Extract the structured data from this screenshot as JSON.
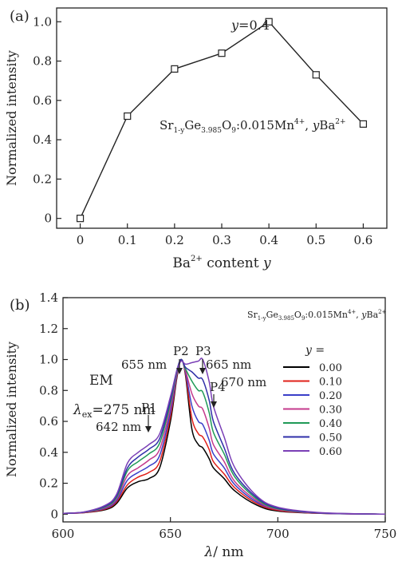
{
  "chart_data": [
    {
      "panel_label": "(a)",
      "type": "line",
      "marker": "open-square",
      "title": "",
      "xlabel": {
        "base": "Ba",
        "sup": "2+",
        "rest": "content",
        "italic": "y"
      },
      "ylabel": "Normalized intensity",
      "xlim": [
        -0.05,
        0.65
      ],
      "ylim": [
        -0.05,
        1.07
      ],
      "xticks": [
        "0",
        "0.1",
        "0.2",
        "0.3",
        "0.4",
        "0.5",
        "0.6"
      ],
      "yticks": [
        "0",
        "0.2",
        "0.4",
        "0.6",
        "0.8",
        "1.0"
      ],
      "x": [
        0.0,
        0.1,
        0.2,
        0.3,
        0.4,
        0.5,
        0.6
      ],
      "values": [
        0.0,
        0.52,
        0.76,
        0.84,
        1.0,
        0.73,
        0.48
      ],
      "peak_annotation": {
        "italic": "y",
        "rest": "=0.4"
      },
      "formula": "Sr1-yGe3.985O9:0.015Mn4+, yBa2+",
      "grid": false,
      "color": "#222222"
    },
    {
      "panel_label": "(b)",
      "type": "line",
      "title": "",
      "xlabel": {
        "greek": "λ",
        "unit": "/ nm"
      },
      "ylabel": "Normalized intensity",
      "xlim": [
        600,
        750
      ],
      "ylim": [
        -0.05,
        1.4
      ],
      "xticks": [
        "600",
        "650",
        "700",
        "750"
      ],
      "yticks": [
        "0",
        "0.2",
        "0.4",
        "0.6",
        "0.8",
        "1.0",
        "1.2",
        "1.4"
      ],
      "formula": "Sr1-yGe3.985O9:0.015Mn4+, yBa2+",
      "mode_label": "EM",
      "excitation_label": {
        "greek": "λ",
        "sub": "ex",
        "rest": "=275 nm"
      },
      "legend": {
        "title": "y =",
        "position": "right"
      },
      "annotations": [
        {
          "label": "P1",
          "wavelength": "642 nm"
        },
        {
          "label": "P2",
          "wavelength": "655 nm"
        },
        {
          "label": "P3",
          "wavelength": "665 nm"
        },
        {
          "label": "P4",
          "wavelength": "670 nm"
        }
      ],
      "x": [
        600,
        610,
        620,
        625,
        630,
        635,
        640,
        645,
        650,
        653,
        655,
        657,
        660,
        663,
        665,
        668,
        670,
        675,
        680,
        690,
        700,
        720,
        750
      ],
      "series": [
        {
          "name": "0.00",
          "color": "#000000",
          "values": [
            0.005,
            0.01,
            0.03,
            0.07,
            0.17,
            0.21,
            0.23,
            0.3,
            0.6,
            0.88,
            1.0,
            0.9,
            0.55,
            0.45,
            0.43,
            0.36,
            0.3,
            0.23,
            0.15,
            0.06,
            0.02,
            0.005,
            0.0
          ]
        },
        {
          "name": "0.10",
          "color": "#e0201a",
          "values": [
            0.005,
            0.01,
            0.035,
            0.08,
            0.19,
            0.24,
            0.27,
            0.34,
            0.63,
            0.89,
            1.0,
            0.91,
            0.62,
            0.52,
            0.5,
            0.42,
            0.34,
            0.26,
            0.17,
            0.07,
            0.025,
            0.005,
            0.0
          ]
        },
        {
          "name": "0.20",
          "color": "#3a3fc8",
          "values": [
            0.005,
            0.012,
            0.04,
            0.09,
            0.22,
            0.27,
            0.31,
            0.38,
            0.66,
            0.9,
            1.0,
            0.92,
            0.7,
            0.6,
            0.58,
            0.48,
            0.39,
            0.3,
            0.19,
            0.08,
            0.03,
            0.006,
            0.0
          ]
        },
        {
          "name": "0.30",
          "color": "#c43a8c",
          "values": [
            0.005,
            0.012,
            0.045,
            0.1,
            0.25,
            0.3,
            0.35,
            0.42,
            0.69,
            0.91,
            1.0,
            0.93,
            0.78,
            0.7,
            0.68,
            0.56,
            0.45,
            0.34,
            0.21,
            0.09,
            0.03,
            0.007,
            0.0
          ]
        },
        {
          "name": "0.40",
          "color": "#1f9a57",
          "values": [
            0.005,
            0.013,
            0.05,
            0.11,
            0.28,
            0.34,
            0.39,
            0.46,
            0.72,
            0.92,
            1.0,
            0.94,
            0.86,
            0.8,
            0.79,
            0.66,
            0.53,
            0.39,
            0.24,
            0.1,
            0.035,
            0.008,
            0.0
          ]
        },
        {
          "name": "0.50",
          "color": "#2f2fa8",
          "values": [
            0.005,
            0.014,
            0.055,
            0.12,
            0.3,
            0.37,
            0.42,
            0.49,
            0.74,
            0.93,
            1.0,
            0.95,
            0.92,
            0.88,
            0.87,
            0.74,
            0.6,
            0.43,
            0.26,
            0.11,
            0.04,
            0.008,
            0.0
          ]
        },
        {
          "name": "0.60",
          "color": "#7a3fb6",
          "values": [
            0.005,
            0.015,
            0.06,
            0.13,
            0.33,
            0.4,
            0.45,
            0.52,
            0.76,
            0.93,
            0.99,
            0.97,
            0.98,
            0.99,
            1.0,
            0.86,
            0.7,
            0.5,
            0.3,
            0.12,
            0.045,
            0.01,
            0.0
          ]
        }
      ]
    }
  ]
}
